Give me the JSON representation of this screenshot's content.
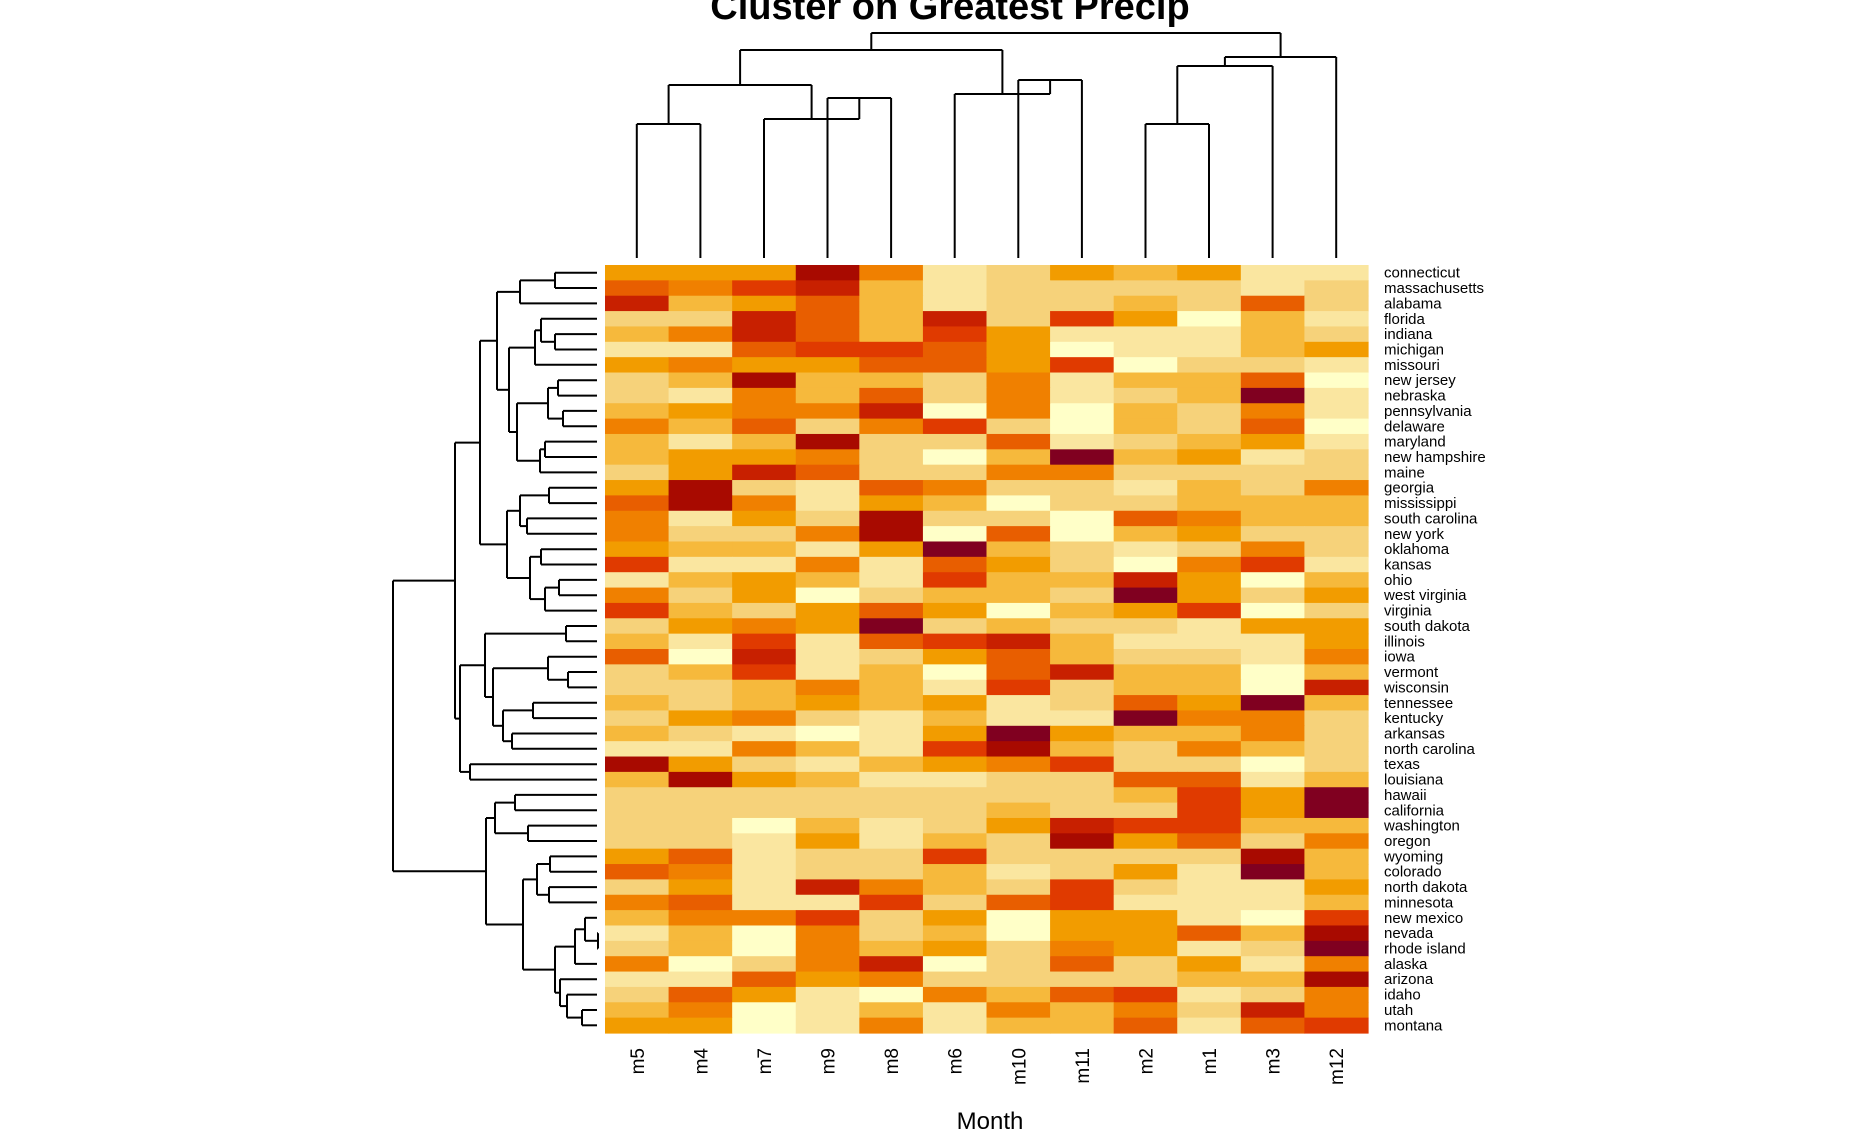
{
  "chart_data": {
    "type": "heatmap",
    "title": "Cluster on Greatest Precip",
    "xlabel": "Month",
    "ylabel": "",
    "columns": [
      "m5",
      "m4",
      "m7",
      "m9",
      "m8",
      "m6",
      "m10",
      "m11",
      "m2",
      "m1",
      "m3",
      "m12"
    ],
    "rows": [
      "connecticut",
      "massachusetts",
      "alabama",
      "florida",
      "indiana",
      "michigan",
      "missouri",
      "new jersey",
      "nebraska",
      "pennsylvania",
      "delaware",
      "maryland",
      "new hampshire",
      "maine",
      "georgia",
      "mississippi",
      "south carolina",
      "new york",
      "oklahoma",
      "kansas",
      "ohio",
      "west virginia",
      "virginia",
      "south dakota",
      "illinois",
      "iowa",
      "vermont",
      "wisconsin",
      "tennessee",
      "kentucky",
      "arkansas",
      "north carolina",
      "texas",
      "louisiana",
      "hawaii",
      "california",
      "washington",
      "oregon",
      "wyoming",
      "colorado",
      "north dakota",
      "minnesota",
      "new mexico",
      "nevada",
      "rhode island",
      "alaska",
      "arizona",
      "idaho",
      "utah",
      "montana"
    ],
    "color_scale": [
      "#FFFFC8",
      "#FAE6A0",
      "#F6D27A",
      "#F6B93C",
      "#F29C00",
      "#F08000",
      "#E85E00",
      "#E03A00",
      "#C82000",
      "#A80A00",
      "#800020"
    ],
    "scale_note_levels": 11,
    "values": [
      [
        4,
        4,
        4,
        9,
        5,
        1,
        2,
        4,
        3,
        4,
        1,
        1
      ],
      [
        6,
        5,
        7,
        8,
        3,
        1,
        2,
        2,
        2,
        2,
        1,
        2
      ],
      [
        8,
        3,
        4,
        6,
        3,
        1,
        2,
        2,
        3,
        2,
        6,
        2
      ],
      [
        2,
        2,
        8,
        6,
        3,
        8,
        2,
        7,
        4,
        0,
        3,
        1
      ],
      [
        3,
        5,
        8,
        6,
        3,
        7,
        4,
        1,
        1,
        1,
        3,
        2
      ],
      [
        1,
        1,
        6,
        7,
        7,
        6,
        4,
        0,
        1,
        1,
        3,
        4
      ],
      [
        4,
        5,
        4,
        4,
        6,
        6,
        4,
        7,
        0,
        2,
        2,
        1
      ],
      [
        2,
        3,
        9,
        3,
        3,
        2,
        5,
        1,
        3,
        3,
        6,
        0
      ],
      [
        2,
        1,
        5,
        3,
        6,
        2,
        5,
        1,
        2,
        3,
        10,
        1
      ],
      [
        3,
        4,
        5,
        5,
        8,
        0,
        5,
        0,
        3,
        2,
        5,
        1
      ],
      [
        5,
        3,
        6,
        2,
        5,
        7,
        2,
        0,
        3,
        2,
        6,
        0
      ],
      [
        3,
        1,
        3,
        9,
        2,
        2,
        6,
        1,
        2,
        3,
        4,
        1
      ],
      [
        3,
        4,
        4,
        5,
        2,
        0,
        3,
        10,
        3,
        4,
        1,
        2
      ],
      [
        2,
        4,
        8,
        6,
        2,
        2,
        5,
        5,
        2,
        2,
        2,
        2
      ],
      [
        4,
        9,
        2,
        1,
        6,
        5,
        2,
        2,
        1,
        3,
        2,
        5
      ],
      [
        6,
        9,
        5,
        1,
        4,
        3,
        0,
        2,
        2,
        3,
        3,
        3
      ],
      [
        5,
        1,
        4,
        2,
        9,
        2,
        2,
        0,
        6,
        5,
        3,
        3
      ],
      [
        5,
        2,
        2,
        5,
        9,
        0,
        6,
        0,
        3,
        4,
        2,
        2
      ],
      [
        4,
        3,
        3,
        1,
        4,
        10,
        3,
        2,
        1,
        2,
        5,
        2
      ],
      [
        7,
        1,
        1,
        5,
        1,
        6,
        4,
        2,
        0,
        5,
        7,
        1
      ],
      [
        1,
        3,
        4,
        3,
        1,
        7,
        3,
        3,
        8,
        4,
        0,
        3
      ],
      [
        5,
        2,
        4,
        0,
        2,
        3,
        3,
        2,
        10,
        4,
        2,
        4
      ],
      [
        7,
        3,
        2,
        4,
        6,
        4,
        0,
        3,
        4,
        7,
        0,
        2
      ],
      [
        2,
        4,
        5,
        4,
        10,
        2,
        3,
        2,
        2,
        1,
        4,
        4
      ],
      [
        3,
        1,
        7,
        1,
        6,
        7,
        8,
        3,
        1,
        1,
        1,
        4
      ],
      [
        6,
        0,
        8,
        1,
        2,
        4,
        6,
        3,
        2,
        2,
        1,
        5
      ],
      [
        2,
        3,
        7,
        1,
        3,
        0,
        6,
        8,
        3,
        3,
        0,
        3
      ],
      [
        2,
        2,
        3,
        5,
        3,
        1,
        7,
        2,
        3,
        3,
        0,
        8
      ],
      [
        3,
        2,
        3,
        4,
        3,
        4,
        1,
        2,
        6,
        4,
        10,
        3
      ],
      [
        2,
        4,
        5,
        2,
        1,
        3,
        1,
        1,
        10,
        5,
        5,
        2
      ],
      [
        3,
        2,
        1,
        0,
        1,
        4,
        10,
        4,
        3,
        3,
        5,
        2
      ],
      [
        1,
        1,
        5,
        3,
        1,
        7,
        9,
        3,
        2,
        5,
        3,
        2
      ],
      [
        9,
        4,
        2,
        1,
        3,
        4,
        5,
        7,
        2,
        2,
        0,
        2
      ],
      [
        3,
        9,
        4,
        3,
        1,
        1,
        2,
        2,
        6,
        6,
        1,
        3
      ],
      [
        2,
        2,
        2,
        2,
        2,
        2,
        2,
        2,
        3,
        7,
        4,
        10
      ],
      [
        2,
        2,
        2,
        2,
        2,
        2,
        3,
        2,
        2,
        7,
        4,
        10
      ],
      [
        2,
        2,
        0,
        3,
        1,
        2,
        4,
        8,
        7,
        7,
        3,
        3
      ],
      [
        2,
        2,
        1,
        4,
        1,
        3,
        2,
        9,
        4,
        6,
        2,
        5
      ],
      [
        4,
        6,
        1,
        2,
        2,
        7,
        2,
        2,
        2,
        2,
        9,
        3
      ],
      [
        6,
        5,
        1,
        2,
        2,
        3,
        1,
        2,
        4,
        1,
        10,
        3
      ],
      [
        2,
        4,
        1,
        8,
        5,
        3,
        2,
        7,
        2,
        1,
        1,
        4
      ],
      [
        5,
        6,
        1,
        1,
        7,
        2,
        6,
        7,
        1,
        1,
        1,
        3
      ],
      [
        3,
        5,
        5,
        7,
        2,
        4,
        0,
        4,
        4,
        1,
        0,
        7
      ],
      [
        1,
        3,
        0,
        5,
        2,
        3,
        0,
        4,
        4,
        6,
        3,
        9
      ],
      [
        2,
        3,
        0,
        5,
        3,
        4,
        2,
        5,
        4,
        1,
        2,
        10
      ],
      [
        5,
        0,
        2,
        5,
        8,
        0,
        2,
        6,
        2,
        4,
        1,
        5
      ],
      [
        1,
        1,
        6,
        4,
        5,
        2,
        2,
        2,
        2,
        3,
        3,
        9
      ],
      [
        2,
        6,
        4,
        1,
        0,
        5,
        3,
        6,
        7,
        1,
        2,
        5
      ],
      [
        3,
        5,
        0,
        1,
        3,
        1,
        5,
        3,
        5,
        2,
        8,
        5
      ],
      [
        4,
        4,
        0,
        1,
        5,
        1,
        3,
        3,
        6,
        1,
        6,
        7
      ]
    ],
    "dendrogram_columns": "hierarchical clustering of months",
    "dendrogram_rows": "hierarchical clustering of states"
  }
}
